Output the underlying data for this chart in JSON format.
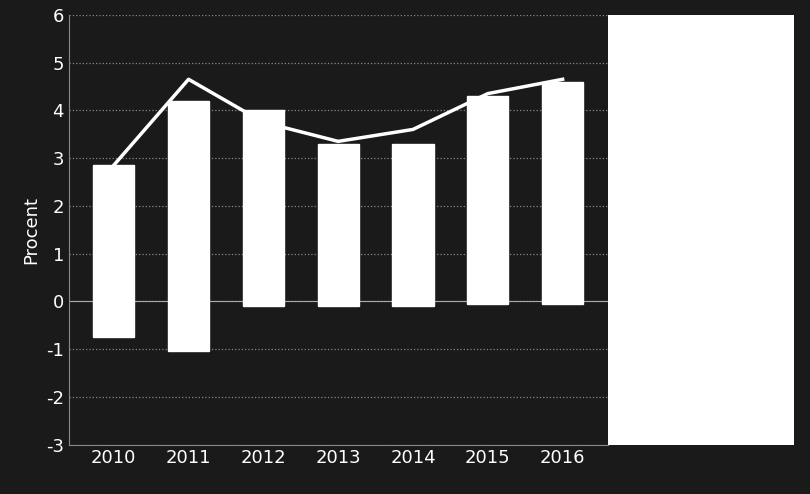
{
  "years": [
    2010,
    2011,
    2012,
    2013,
    2014,
    2015,
    2016
  ],
  "bar_bottom": [
    -0.75,
    -1.05,
    -0.1,
    -0.1,
    -0.1,
    -0.05,
    -0.05
  ],
  "bar_top": [
    2.85,
    4.2,
    4.0,
    3.3,
    3.3,
    4.3,
    4.6
  ],
  "line_values": [
    2.85,
    4.65,
    3.75,
    3.35,
    3.6,
    4.35,
    4.65
  ],
  "bar_color": "#ffffff",
  "line_color": "#ffffff",
  "background_color": "#1a1a1a",
  "plot_bg_color": "#1a1a1a",
  "right_bg_color": "#ffffff",
  "ylabel": "Procent",
  "ylim": [
    -3,
    6
  ],
  "yticks": [
    -3,
    -2,
    -1,
    0,
    1,
    2,
    3,
    4,
    5,
    6
  ],
  "grid_color": "#888888",
  "bar_width": 0.55,
  "tick_label_color": "#ffffff",
  "line_linewidth": 2.5
}
